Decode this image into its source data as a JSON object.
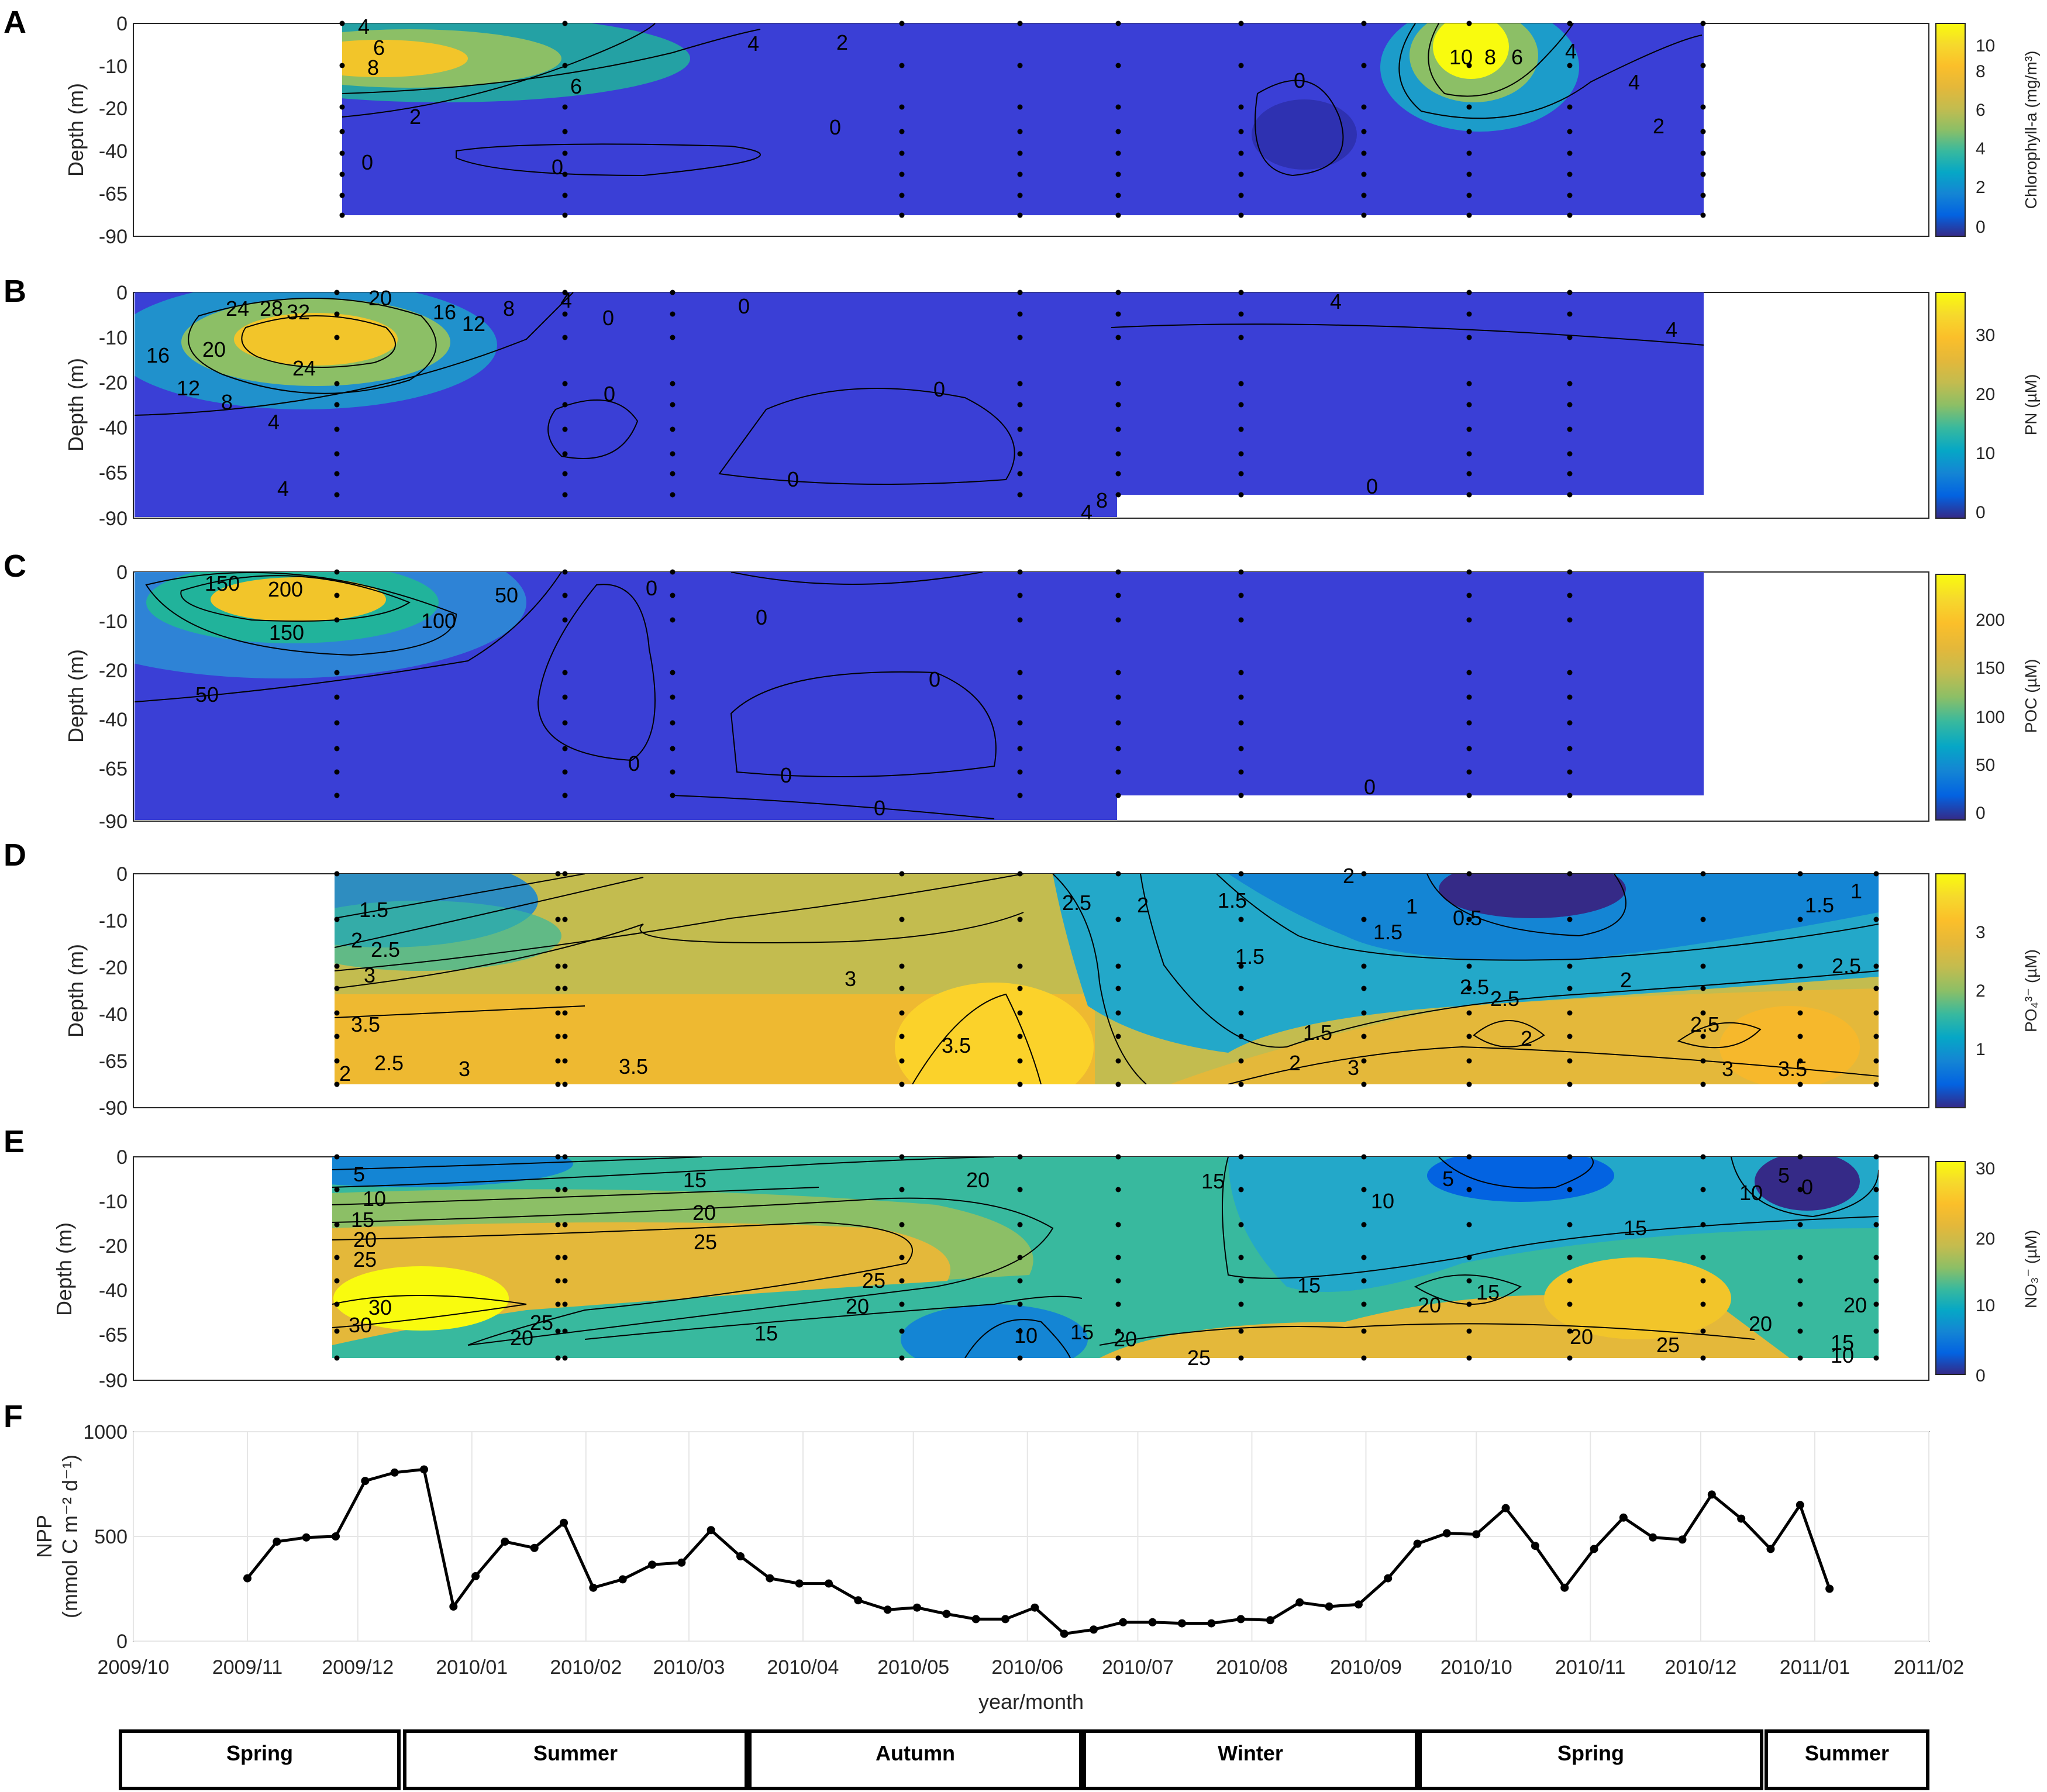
{
  "chart_data": [
    {
      "panel": "A",
      "type": "heatmap",
      "ylabel": "Depth (m)",
      "colorbar_label": "Chlorophyll-a (mg/m³)",
      "colorbar_ticks": [
        "0",
        "2",
        "4",
        "6",
        "8",
        "10"
      ],
      "colorbar_range": [
        0,
        11
      ],
      "y_ticks": [
        "0",
        "-10",
        "-20",
        "-40",
        "-65",
        "-90"
      ],
      "x_range": [
        "2009/11/28",
        "2010/12/31"
      ],
      "bottom_depth_level": "-65",
      "contour_labels": [
        "4",
        "6",
        "8",
        "6",
        "4",
        "2",
        "2",
        "0",
        "0",
        "0",
        "0",
        "10",
        "8",
        "6",
        "4",
        "4",
        "2"
      ],
      "hotspots": [
        {
          "date": "2009/12/05",
          "depth": "-10",
          "value": 8.5
        },
        {
          "date": "2010/10/03",
          "depth": "-5",
          "value": 10.5
        }
      ]
    },
    {
      "panel": "B",
      "type": "heatmap",
      "ylabel": "Depth (m)",
      "colorbar_label": "PN (µM)",
      "colorbar_ticks": [
        "0",
        "10",
        "20",
        "30"
      ],
      "colorbar_range": [
        0,
        38
      ],
      "y_ticks": [
        "0",
        "-10",
        "-20",
        "-40",
        "-65",
        "-90"
      ],
      "x_range": [
        "2009/10/05",
        "2010/12/31"
      ],
      "contour_labels": [
        "24",
        "28",
        "32",
        "20",
        "16",
        "12",
        "8",
        "4",
        "20",
        "24",
        "16",
        "12",
        "8",
        "4",
        "0",
        "0",
        "0",
        "0",
        "0",
        "0",
        "4",
        "4",
        "4",
        "8",
        "4"
      ],
      "hotspots": [
        {
          "date": "2009/12/01",
          "depth": "-10",
          "value": 34
        }
      ]
    },
    {
      "panel": "C",
      "type": "heatmap",
      "ylabel": "Depth (m)",
      "colorbar_label": "POC (µM)",
      "colorbar_ticks": [
        "0",
        "50",
        "100",
        "150",
        "200"
      ],
      "colorbar_range": [
        0,
        245
      ],
      "y_ticks": [
        "0",
        "-10",
        "-20",
        "-40",
        "-65",
        "-90"
      ],
      "x_range": [
        "2009/10/05",
        "2010/12/31"
      ],
      "contour_labels": [
        "150",
        "200",
        "150",
        "100",
        "50",
        "50",
        "0",
        "0",
        "0",
        "0",
        "0",
        "0",
        "0"
      ],
      "hotspots": [
        {
          "date": "2009/12/01",
          "depth": "-5",
          "value": 230
        }
      ]
    },
    {
      "panel": "D",
      "type": "heatmap",
      "ylabel": "Depth (m)",
      "colorbar_label": "PO₄³⁻ (µM)",
      "colorbar_ticks": [
        "1",
        "2",
        "3"
      ],
      "colorbar_range": [
        0,
        4
      ],
      "y_ticks": [
        "0",
        "-10",
        "-20",
        "-40",
        "-65",
        "-90"
      ],
      "x_range": [
        "2009/11/28",
        "2011/01/17"
      ],
      "contour_labels": [
        "1.5",
        "2",
        "2.5",
        "3",
        "3.5",
        "2.5",
        "2",
        "3",
        "3.5",
        "3",
        "3.5",
        "2.5",
        "2",
        "1.5",
        "2",
        "1.5",
        "2",
        "1.5",
        "1",
        "0.5",
        "1.5",
        "2.5",
        "3",
        "2.5",
        "2",
        "2",
        "2.5",
        "2.5",
        "3",
        "3.5",
        "1.5",
        "1"
      ],
      "hotspots": [
        {
          "date": "2010/05/28",
          "depth": "-65",
          "value": 3.8
        },
        {
          "date": "2010/10/08",
          "depth": "-2",
          "value": 0.4
        }
      ]
    },
    {
      "panel": "E",
      "type": "heatmap",
      "ylabel": "Depth (m)",
      "colorbar_label": "NO₃⁻ (µM)",
      "colorbar_ticks": [
        "0",
        "10",
        "20",
        "30"
      ],
      "colorbar_range": [
        0,
        31
      ],
      "y_ticks": [
        "0",
        "-10",
        "-20",
        "-40",
        "-65",
        "-90"
      ],
      "x_range": [
        "2009/11/28",
        "2011/01/17"
      ],
      "contour_labels": [
        "5",
        "10",
        "15",
        "20",
        "25",
        "30",
        "30",
        "25",
        "20",
        "15",
        "20",
        "25",
        "25",
        "20",
        "15",
        "20",
        "10",
        "15",
        "20",
        "25",
        "15",
        "15",
        "10",
        "5",
        "20",
        "15",
        "20",
        "15",
        "25",
        "10",
        "5",
        "0",
        "20",
        "15",
        "10",
        "20"
      ],
      "hotspots": [
        {
          "date": "2009/12/10",
          "depth": "-50",
          "value": 30
        },
        {
          "date": "2010/12/28",
          "depth": "-8",
          "value": 0
        }
      ]
    },
    {
      "panel": "F",
      "type": "line",
      "ylabel": "NPP (mmol C m⁻² d⁻¹)",
      "ylabel_line1": "NPP",
      "ylabel_line2": "(mmol C m⁻² d⁻¹)",
      "xlabel": "year/month",
      "ylim": [
        0,
        1000
      ],
      "y_ticks": [
        0,
        500,
        1000
      ],
      "x_ticks": [
        "2009/10",
        "2009/11",
        "2009/12",
        "2010/01",
        "2010/02",
        "2010/03",
        "2010/04",
        "2010/05",
        "2010/06",
        "2010/07",
        "2010/08",
        "2010/09",
        "2010/10",
        "2010/11",
        "2010/12",
        "2011/01",
        "2011/02"
      ],
      "grid": true,
      "x": [
        "2009/11/01",
        "2009/11/09",
        "2009/11/17",
        "2009/11/25",
        "2009/12/03",
        "2009/12/11",
        "2009/12/19",
        "2009/12/27",
        "2010/01/02",
        "2010/01/10",
        "2010/01/18",
        "2010/01/26",
        "2010/02/03",
        "2010/02/11",
        "2010/02/19",
        "2010/02/27",
        "2010/03/07",
        "2010/03/15",
        "2010/03/23",
        "2010/03/31",
        "2010/04/08",
        "2010/04/16",
        "2010/04/24",
        "2010/05/02",
        "2010/05/10",
        "2010/05/18",
        "2010/05/26",
        "2010/06/03",
        "2010/06/11",
        "2010/06/19",
        "2010/06/27",
        "2010/07/05",
        "2010/07/13",
        "2010/07/21",
        "2010/07/29",
        "2010/08/06",
        "2010/08/14",
        "2010/08/22",
        "2010/08/30",
        "2010/09/07",
        "2010/09/15",
        "2010/09/23",
        "2010/10/01",
        "2010/10/09",
        "2010/10/17",
        "2010/10/25",
        "2010/11/02",
        "2010/11/10",
        "2010/11/18",
        "2010/11/26",
        "2010/12/04",
        "2010/12/12",
        "2010/12/20",
        "2010/12/28",
        "2011/01/05"
      ],
      "y": [
        300,
        475,
        495,
        500,
        765,
        805,
        820,
        165,
        310,
        475,
        445,
        565,
        255,
        295,
        365,
        375,
        530,
        405,
        300,
        275,
        275,
        195,
        150,
        160,
        130,
        105,
        105,
        160,
        35,
        55,
        90,
        90,
        85,
        85,
        105,
        100,
        185,
        165,
        175,
        300,
        465,
        515,
        510,
        635,
        455,
        255,
        440,
        590,
        495,
        485,
        700,
        585,
        440,
        650,
        250
      ]
    }
  ],
  "seasons": [
    "Spring",
    "Summer",
    "Autumn",
    "Winter",
    "Spring",
    "Summer"
  ],
  "colors": {
    "low": "#352a87",
    "mid": "#21b39b",
    "high": "#f9fb0e",
    "line": "#000000",
    "grid": "#e6e6e6"
  }
}
